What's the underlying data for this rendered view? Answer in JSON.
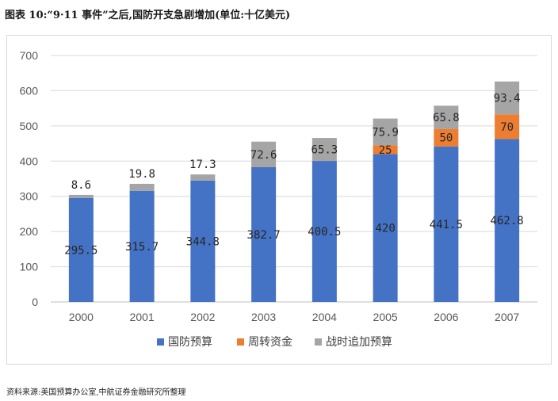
{
  "title": "图表 10:“9·11 事件”之后,国防开支急剧增加(单位:十亿美元)",
  "source": "资料来源:美国预算办公室,中航证券金融研究所整理",
  "chart_data": {
    "type": "bar",
    "stacked": true,
    "categories": [
      "2000",
      "2001",
      "2002",
      "2003",
      "2004",
      "2005",
      "2006",
      "2007"
    ],
    "series": [
      {
        "name": "国防预算",
        "color": "#4472c4",
        "values": [
          295.5,
          315.7,
          344.8,
          382.7,
          400.5,
          420,
          441.5,
          462.8
        ],
        "labels": [
          "295.5",
          "315.7",
          "344.8",
          "382.7",
          "400.5",
          "420",
          "441.5",
          "462.8"
        ]
      },
      {
        "name": "周转资金",
        "color": "#ed7d31",
        "values": [
          0,
          0,
          0,
          0,
          0,
          25,
          50,
          70
        ],
        "labels": [
          "",
          "",
          "",
          "",
          "",
          "25",
          "50",
          "70"
        ]
      },
      {
        "name": "战时追加预算",
        "color": "#a5a5a5",
        "values": [
          8.6,
          19.8,
          17.3,
          72.6,
          65.3,
          75.9,
          65.8,
          93.4
        ],
        "labels": [
          "8.6",
          "19.8",
          "17.3",
          "72.6",
          "65.3",
          "75.9",
          "65.8",
          "93.4"
        ]
      }
    ],
    "ylim": [
      0,
      700
    ],
    "yticks": [
      "0",
      "100",
      "200",
      "300",
      "400",
      "500",
      "600",
      "700"
    ],
    "grid": true,
    "legend": "bottom"
  }
}
